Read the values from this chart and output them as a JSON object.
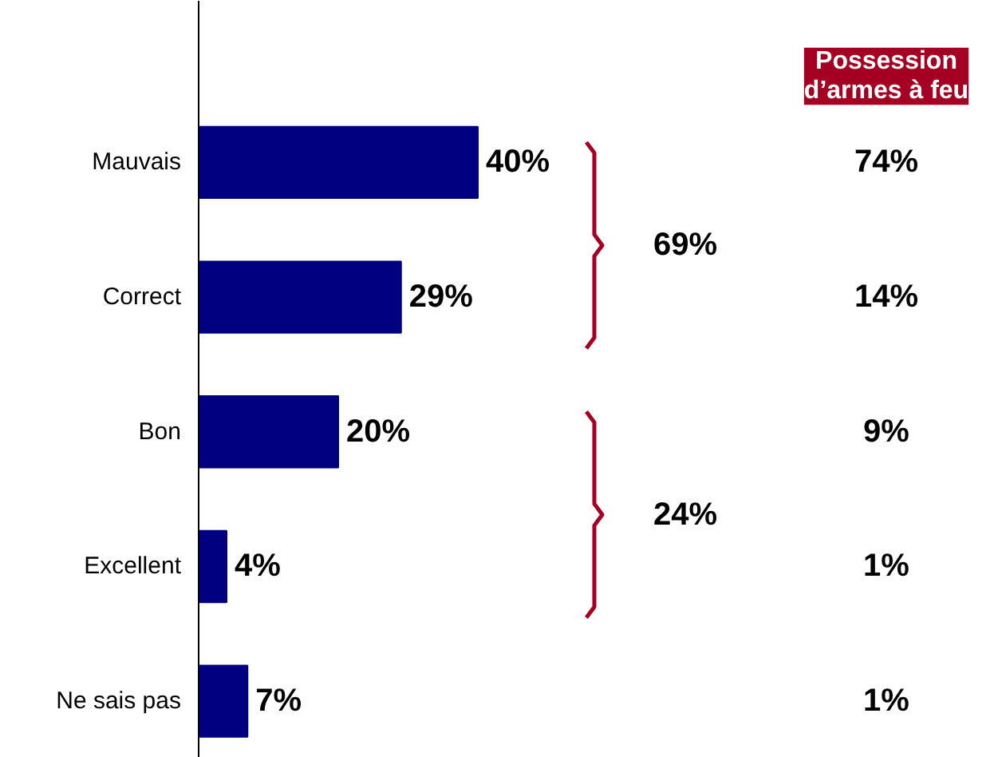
{
  "chart_data": {
    "type": "bar",
    "orientation": "horizontal",
    "categories": [
      "Mauvais",
      "Correct",
      "Bon",
      "Excellent",
      "Ne sais pas"
    ],
    "values": [
      40,
      29,
      20,
      4,
      7
    ],
    "color": "#000080",
    "value_labels": [
      "40%",
      "29%",
      "20%",
      "4%",
      "7%"
    ],
    "annotations": [
      "Possession\nd’armes à feu",
      "69%",
      "24%",
      "74%",
      "14%",
      "9%",
      "1%",
      "1%"
    ],
    "grid": false
  }
}
